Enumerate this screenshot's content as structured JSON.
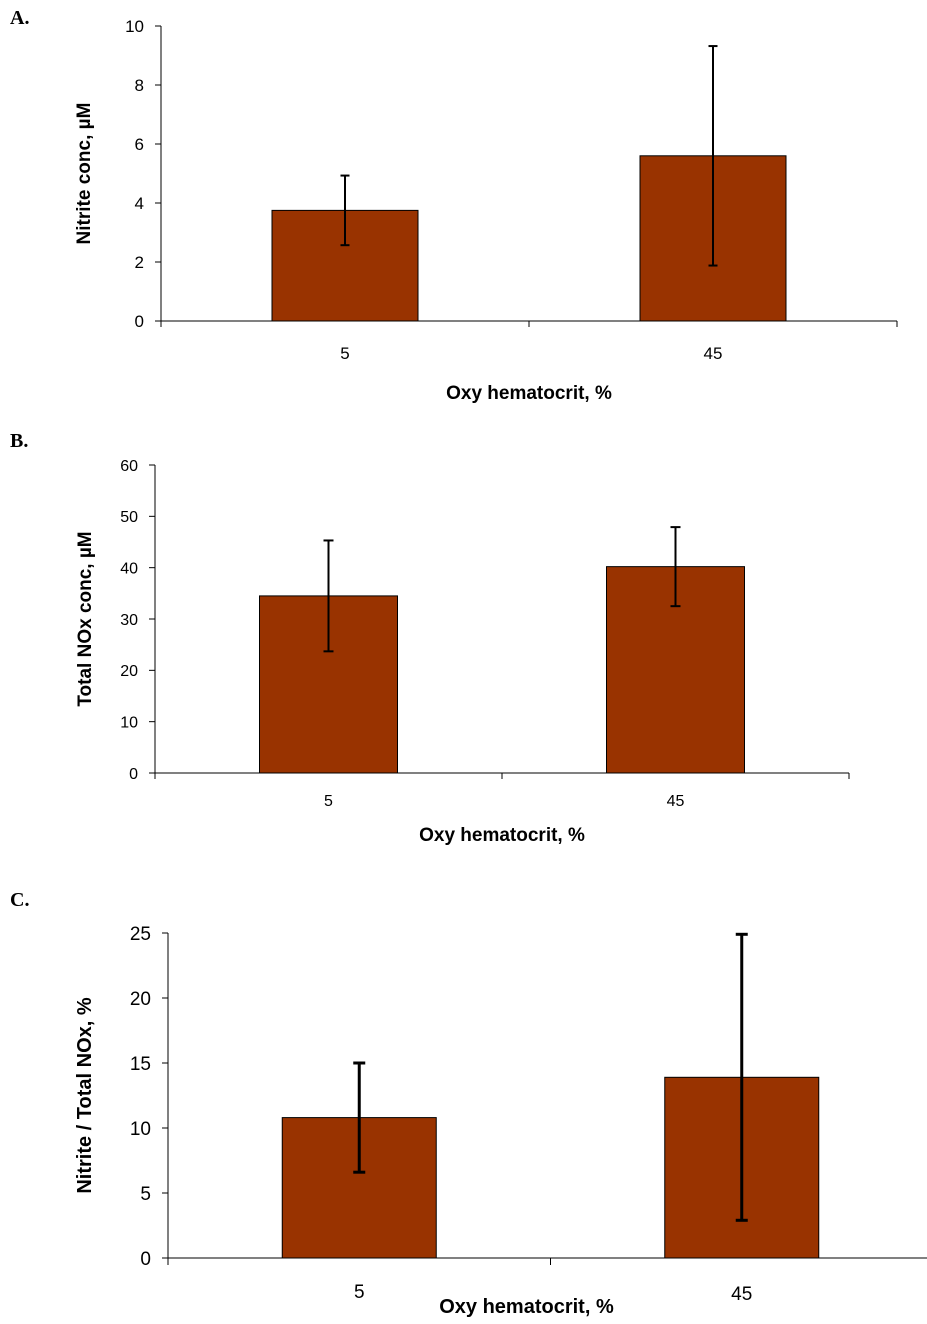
{
  "colors": {
    "bar_fill": "#993300",
    "axis": "#000000"
  },
  "chart_data": [
    {
      "type": "bar",
      "panel_label": "A.",
      "categories": [
        "5",
        "45"
      ],
      "values": [
        3.75,
        5.6
      ],
      "error_bars": [
        1.18,
        3.72
      ],
      "xlabel": "Oxy hematocrit, %",
      "ylabel": "Nitrite conc, µM",
      "ylim": [
        0,
        10
      ],
      "yticks": [
        "0",
        "2",
        "4",
        "6",
        "8",
        "10"
      ],
      "grid": false
    },
    {
      "type": "bar",
      "panel_label": "B.",
      "categories": [
        "5",
        "45"
      ],
      "values": [
        34.5,
        40.2
      ],
      "error_bars": [
        10.8,
        7.7
      ],
      "xlabel": "Oxy hematocrit, %",
      "ylabel": "Total NOx conc, µM",
      "ylim": [
        0,
        60
      ],
      "yticks": [
        "0",
        "10",
        "20",
        "30",
        "40",
        "50",
        "60"
      ],
      "grid": false
    },
    {
      "type": "bar",
      "panel_label": "C.",
      "categories": [
        "5",
        "45"
      ],
      "values": [
        10.8,
        13.9
      ],
      "error_bars": [
        4.2,
        11.0
      ],
      "xlabel": "Oxy hematocrit, %",
      "ylabel": "Nitrite / Total NOx, %",
      "ylim": [
        0,
        25
      ],
      "yticks": [
        "0",
        "5",
        "10",
        "15",
        "20",
        "25"
      ],
      "grid": false
    }
  ]
}
